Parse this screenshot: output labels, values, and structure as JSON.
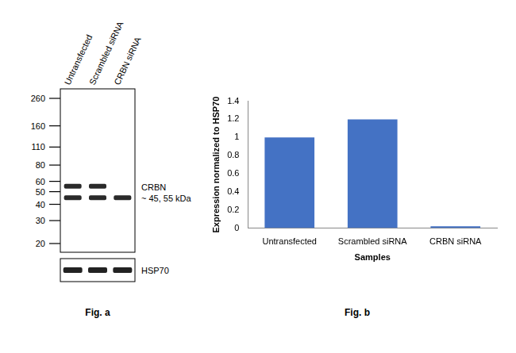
{
  "figure_a": {
    "lanes": [
      {
        "label": "Untransfected",
        "bands": [
          55,
          45
        ]
      },
      {
        "label": "Scrambled siRNA",
        "bands": [
          55,
          45
        ]
      },
      {
        "label": "CRBN siRNA",
        "bands": [
          45
        ]
      }
    ],
    "markers": [
      260,
      160,
      110,
      80,
      60,
      50,
      40,
      30,
      20
    ],
    "target_label": "CRBN",
    "target_size": "~ 45, 55 kDa",
    "loading_control": "HSP70"
  },
  "chart_data": {
    "type": "bar",
    "categories": [
      "Untransfected",
      "Scrambled siRNA",
      "CRBN siRNA"
    ],
    "values": [
      1,
      1.2,
      0.02
    ],
    "color": "#4472c4",
    "x_label": "Samples",
    "y_label": "Expression normalized to HSP70",
    "ylim": [
      0,
      1.4
    ],
    "yticks": [
      0,
      0.2,
      0.4,
      0.6,
      0.8,
      1,
      1.2,
      1.4
    ],
    "grid": false
  },
  "captions": [
    "Fig. a",
    "Fig. b"
  ]
}
